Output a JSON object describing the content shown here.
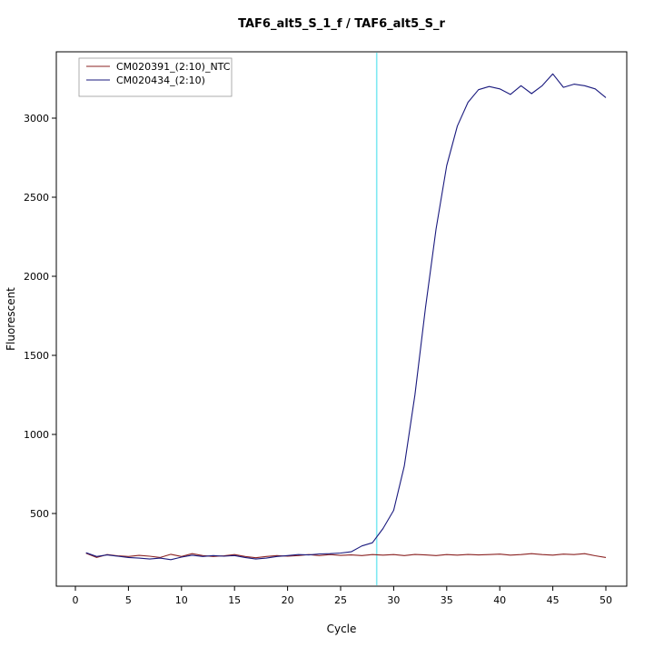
{
  "title": "TAF6_alt5_S_1_f / TAF6_alt5_S_r",
  "chart_data": {
    "type": "line",
    "title": "TAF6_alt5_S_1_f / TAF6_alt5_S_r",
    "xlabel": "Cycle",
    "ylabel": "Fluorescent",
    "xlim": [
      0,
      50
    ],
    "ylim": [
      40,
      3400
    ],
    "x_ticks": [
      0,
      5,
      10,
      15,
      20,
      25,
      30,
      35,
      40,
      45,
      50
    ],
    "y_ticks": [
      500,
      1000,
      1500,
      2000,
      2500,
      3000
    ],
    "grid": false,
    "legend_position": "top-left",
    "threshold_line": {
      "x": 28.4,
      "color": "#7fe9f2"
    },
    "x": [
      1,
      2,
      3,
      4,
      5,
      6,
      7,
      8,
      9,
      10,
      11,
      12,
      13,
      14,
      15,
      16,
      17,
      18,
      19,
      20,
      21,
      22,
      23,
      24,
      25,
      26,
      27,
      28,
      29,
      30,
      31,
      32,
      33,
      34,
      35,
      36,
      37,
      38,
      39,
      40,
      41,
      42,
      43,
      44,
      45,
      46,
      47,
      48,
      49,
      50
    ],
    "series": [
      {
        "name": "CM020391_(2:10)_NTC",
        "color": "#8b2323",
        "values": [
          248,
          222,
          240,
          232,
          228,
          235,
          230,
          222,
          242,
          228,
          246,
          234,
          228,
          233,
          240,
          228,
          220,
          228,
          234,
          230,
          234,
          240,
          234,
          240,
          235,
          238,
          234,
          240,
          237,
          240,
          234,
          241,
          238,
          234,
          240,
          237,
          241,
          238,
          240,
          243,
          237,
          240,
          246,
          240,
          237,
          243,
          240,
          246,
          233,
          222
        ]
      },
      {
        "name": "CM020434_(2:10)",
        "color": "#1a1a7e",
        "values": [
          252,
          228,
          238,
          230,
          222,
          218,
          212,
          218,
          208,
          224,
          236,
          228,
          234,
          230,
          234,
          222,
          212,
          218,
          228,
          234,
          240,
          238,
          244,
          246,
          250,
          258,
          295,
          315,
          405,
          520,
          800,
          1250,
          1800,
          2300,
          2700,
          2950,
          3100,
          3180,
          3200,
          3185,
          3150,
          3205,
          3155,
          3205,
          3280,
          3195,
          3215,
          3205,
          3185,
          3130
        ]
      }
    ]
  }
}
